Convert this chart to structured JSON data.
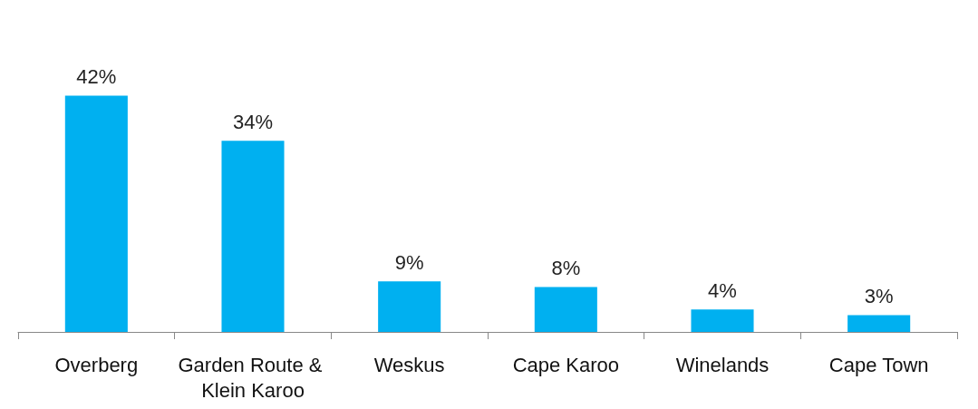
{
  "chart_data": {
    "type": "bar",
    "categories": [
      "Overberg",
      "Garden Route & Klein Karoo",
      "Weskus",
      "Cape Karoo",
      "Winelands",
      "Cape Town"
    ],
    "values": [
      42,
      34,
      9,
      8,
      4,
      3
    ],
    "value_labels": [
      "42%",
      "34%",
      "9%",
      "8%",
      "4%",
      "3%"
    ],
    "color": "#00b0f0"
  }
}
